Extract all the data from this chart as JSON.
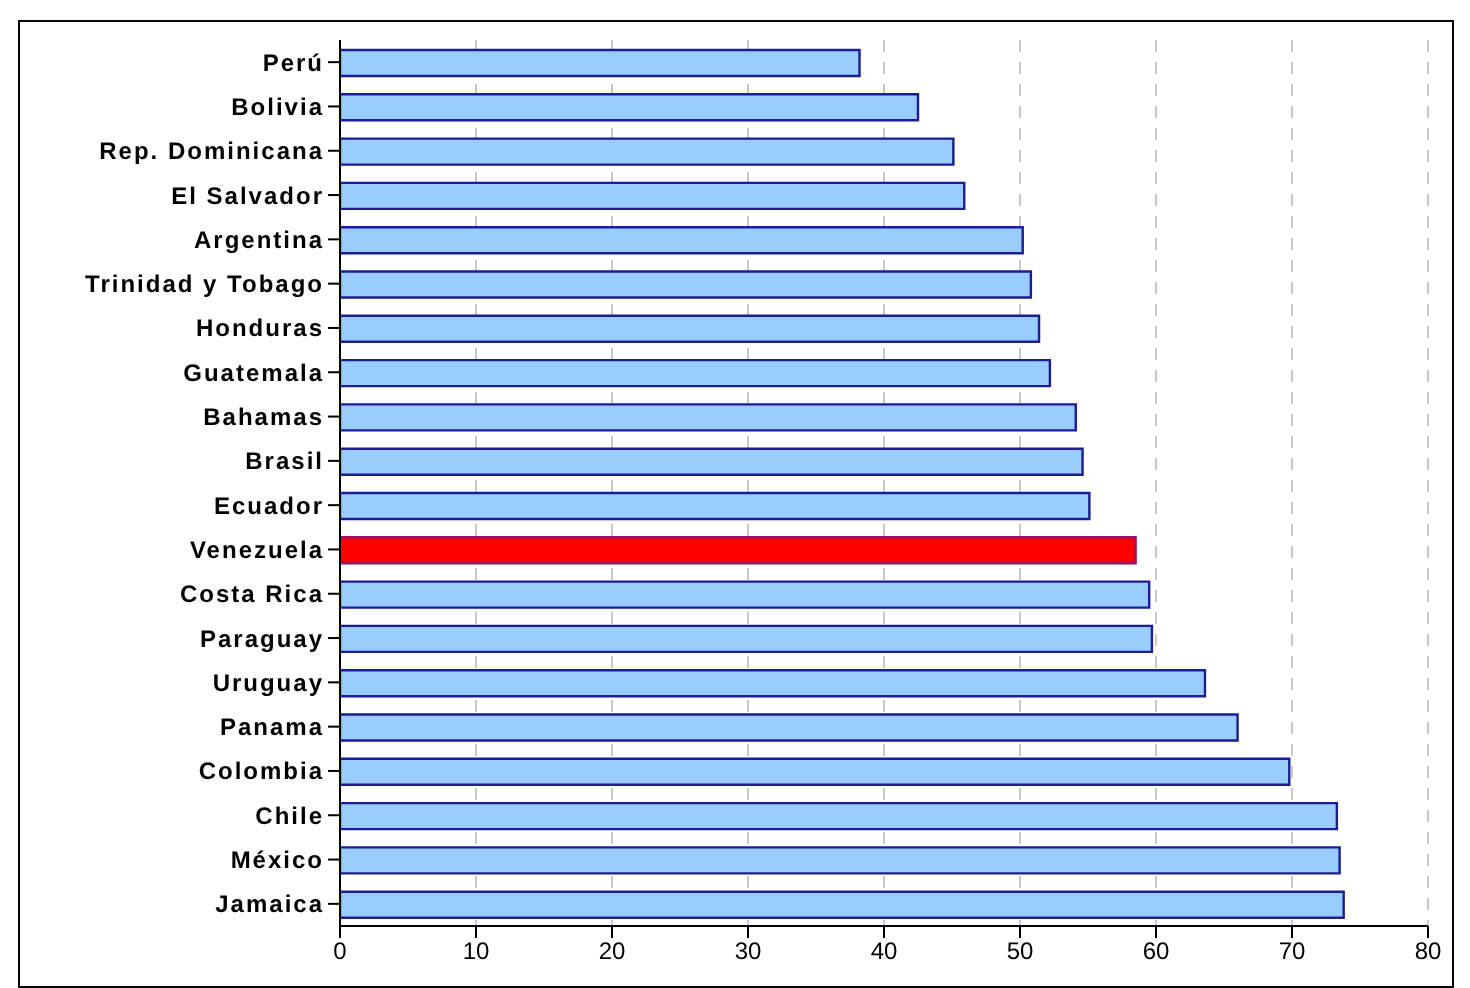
{
  "chart_data": {
    "type": "bar",
    "orientation": "horizontal",
    "categories": [
      "Perú",
      "Bolivia",
      "Rep. Dominicana",
      "El Salvador",
      "Argentina",
      "Trinidad y Tobago",
      "Honduras",
      "Guatemala",
      "Bahamas",
      "Brasil",
      "Ecuador",
      "Venezuela",
      "Costa Rica",
      "Paraguay",
      "Uruguay",
      "Panama",
      "Colombia",
      "Chile",
      "México",
      "Jamaica"
    ],
    "values": [
      38.2,
      42.5,
      45.1,
      45.9,
      50.2,
      50.8,
      51.4,
      52.2,
      54.1,
      54.6,
      55.1,
      58.5,
      59.5,
      59.7,
      63.6,
      66.0,
      69.8,
      73.3,
      73.5,
      73.8
    ],
    "colors": [
      "#99ccff",
      "#99ccff",
      "#99ccff",
      "#99ccff",
      "#99ccff",
      "#99ccff",
      "#99ccff",
      "#99ccff",
      "#99ccff",
      "#99ccff",
      "#99ccff",
      "#ff0000",
      "#99ccff",
      "#99ccff",
      "#99ccff",
      "#99ccff",
      "#99ccff",
      "#99ccff",
      "#99ccff",
      "#99ccff"
    ],
    "xlim": [
      0,
      80
    ],
    "xticks": [
      0,
      10,
      20,
      30,
      40,
      50,
      60,
      70,
      80
    ],
    "grid": "x"
  }
}
